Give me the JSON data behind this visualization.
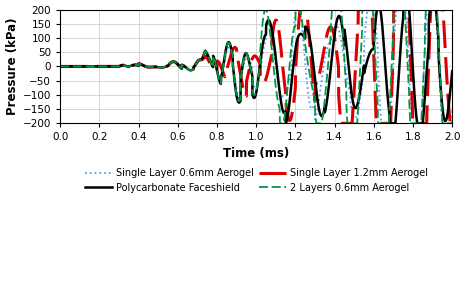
{
  "title": "",
  "xlabel": "Time (ms)",
  "ylabel": "Pressure (kPa)",
  "xlim": [
    0,
    2
  ],
  "ylim": [
    -200,
    200
  ],
  "xticks": [
    0,
    0.2,
    0.4,
    0.6,
    0.8,
    1.0,
    1.2,
    1.4,
    1.6,
    1.8,
    2.0
  ],
  "yticks": [
    -200,
    -150,
    -100,
    -50,
    0,
    50,
    100,
    150,
    200
  ],
  "lines": [
    {
      "label": "Single Layer 0.6mm Aerogel",
      "color": "#5599ff",
      "linestyle": "dotted",
      "linewidth": 1.3
    },
    {
      "label": "Single Layer 1.2mm Aerogel",
      "color": "#dd0000",
      "linestyle": "dashed",
      "linewidth": 2.2
    },
    {
      "label": "Polycarbonate Faceshield",
      "color": "#000000",
      "linestyle": "solid",
      "linewidth": 1.8
    },
    {
      "label": "2 Layers 0.6mm Aerogel",
      "color": "#009944",
      "linestyle": "dashed",
      "linewidth": 1.3
    }
  ],
  "legend_order": [
    0,
    2,
    1,
    3
  ],
  "background_color": "#ffffff",
  "grid_color": "#c8c8c8"
}
